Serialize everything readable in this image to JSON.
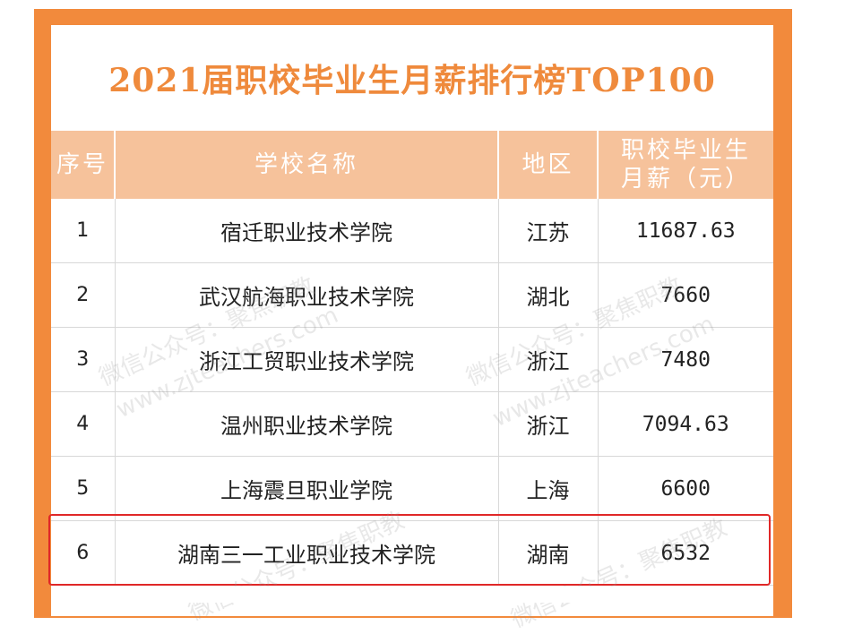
{
  "title": "2021届职校毕业生月薪排行榜TOP100",
  "columns": [
    {
      "label": "序号"
    },
    {
      "label": "学校名称"
    },
    {
      "label": "地区"
    },
    {
      "label_line1": "职校毕业生",
      "label_line2": "月薪（元）"
    }
  ],
  "rows": [
    {
      "rank": "1",
      "school": "宿迁职业技术学院",
      "region": "江苏",
      "salary": "11687.63"
    },
    {
      "rank": "2",
      "school": "武汉航海职业技术学院",
      "region": "湖北",
      "salary": "7660"
    },
    {
      "rank": "3",
      "school": "浙江工贸职业技术学院",
      "region": "浙江",
      "salary": "7480"
    },
    {
      "rank": "4",
      "school": "温州职业技术学院",
      "region": "浙江",
      "salary": "7094.63"
    },
    {
      "rank": "5",
      "school": "上海震旦职业学院",
      "region": "上海",
      "salary": "6600"
    },
    {
      "rank": "6",
      "school": "湖南三一工业职业技术学院",
      "region": "湖南",
      "salary": "6532"
    }
  ],
  "watermark": {
    "line1": "微信公众号：聚焦职教",
    "line2": "www.zjteachers.com"
  },
  "colors": {
    "frame": "#f28a3c",
    "header_bg": "#f6c29b",
    "title": "#ef8a3c",
    "highlight": "#e02828"
  }
}
